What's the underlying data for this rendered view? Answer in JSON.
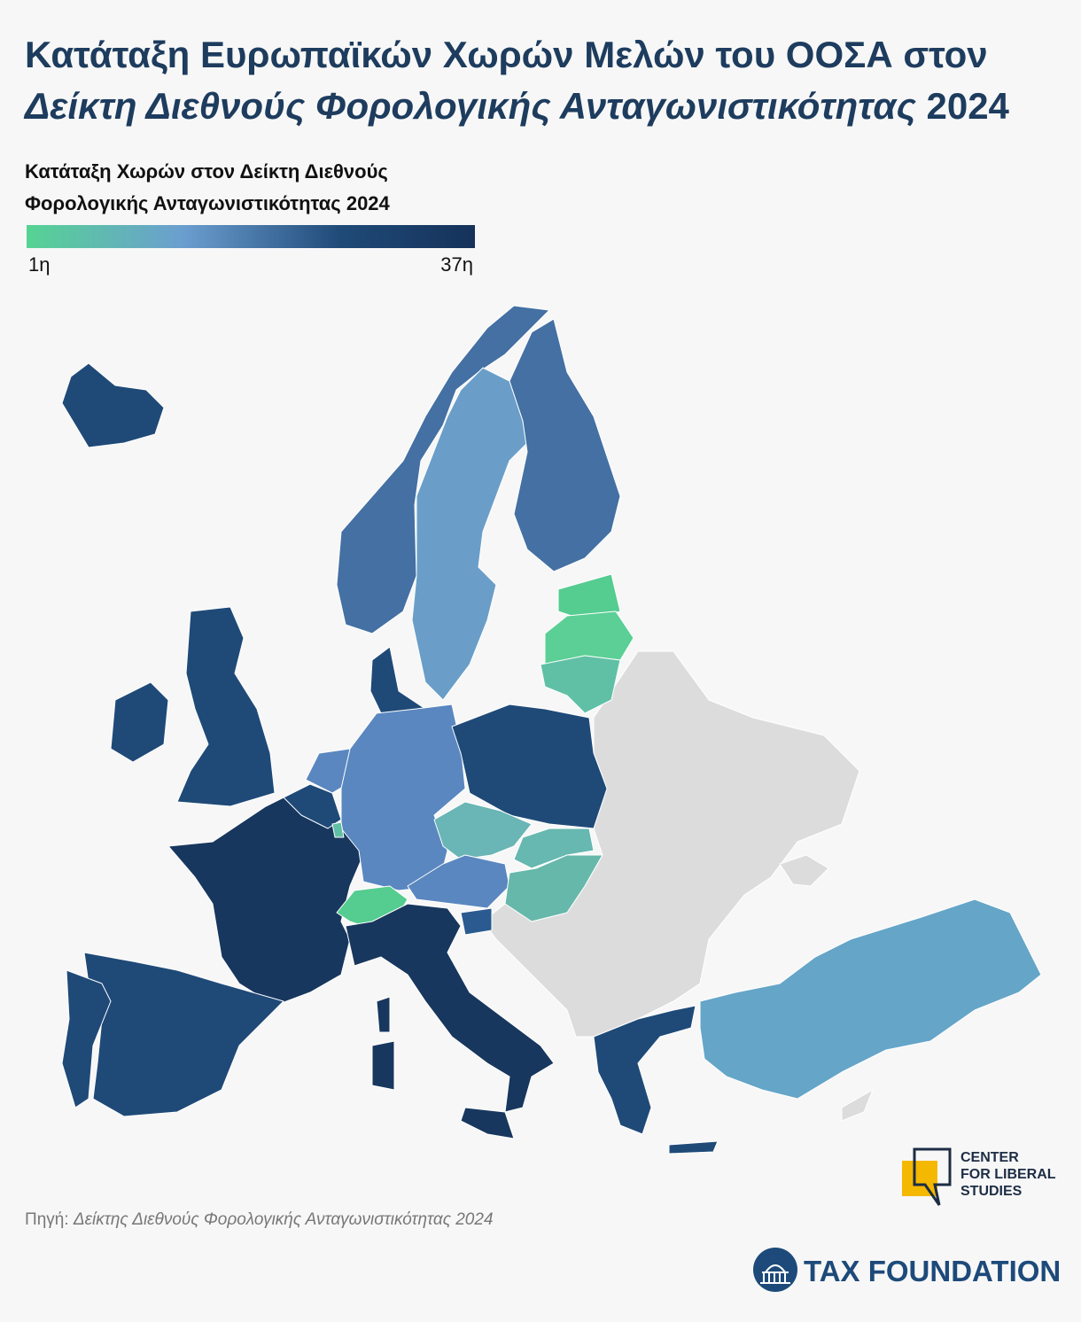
{
  "title": {
    "line1": "Κατάταξη Ευρωπαϊκών Χωρών Μελών του ΟΟΣΑ στον",
    "line2_italic": "Δείκτη Διεθνούς Φορολογικής Ανταγωνιστικότητας",
    "line2_year": "2024"
  },
  "legend": {
    "title": [
      "Κατάταξη Χωρών στον Δείκτη Διεθνούς",
      "Φορολογικής Ανταγωνιστικότητας 2024"
    ],
    "low_label": "1η",
    "high_label": "37η"
  },
  "source": {
    "label": "Πηγή:",
    "text": "Δείκτης Διεθνούς Φορολογικής Ανταγωνιστικότητας 2024"
  },
  "logos": {
    "cls": [
      "CENTER",
      "FOR LIBERAL",
      "STUDIES"
    ],
    "tax_foundation": "TAX FOUNDATION"
  }
}
